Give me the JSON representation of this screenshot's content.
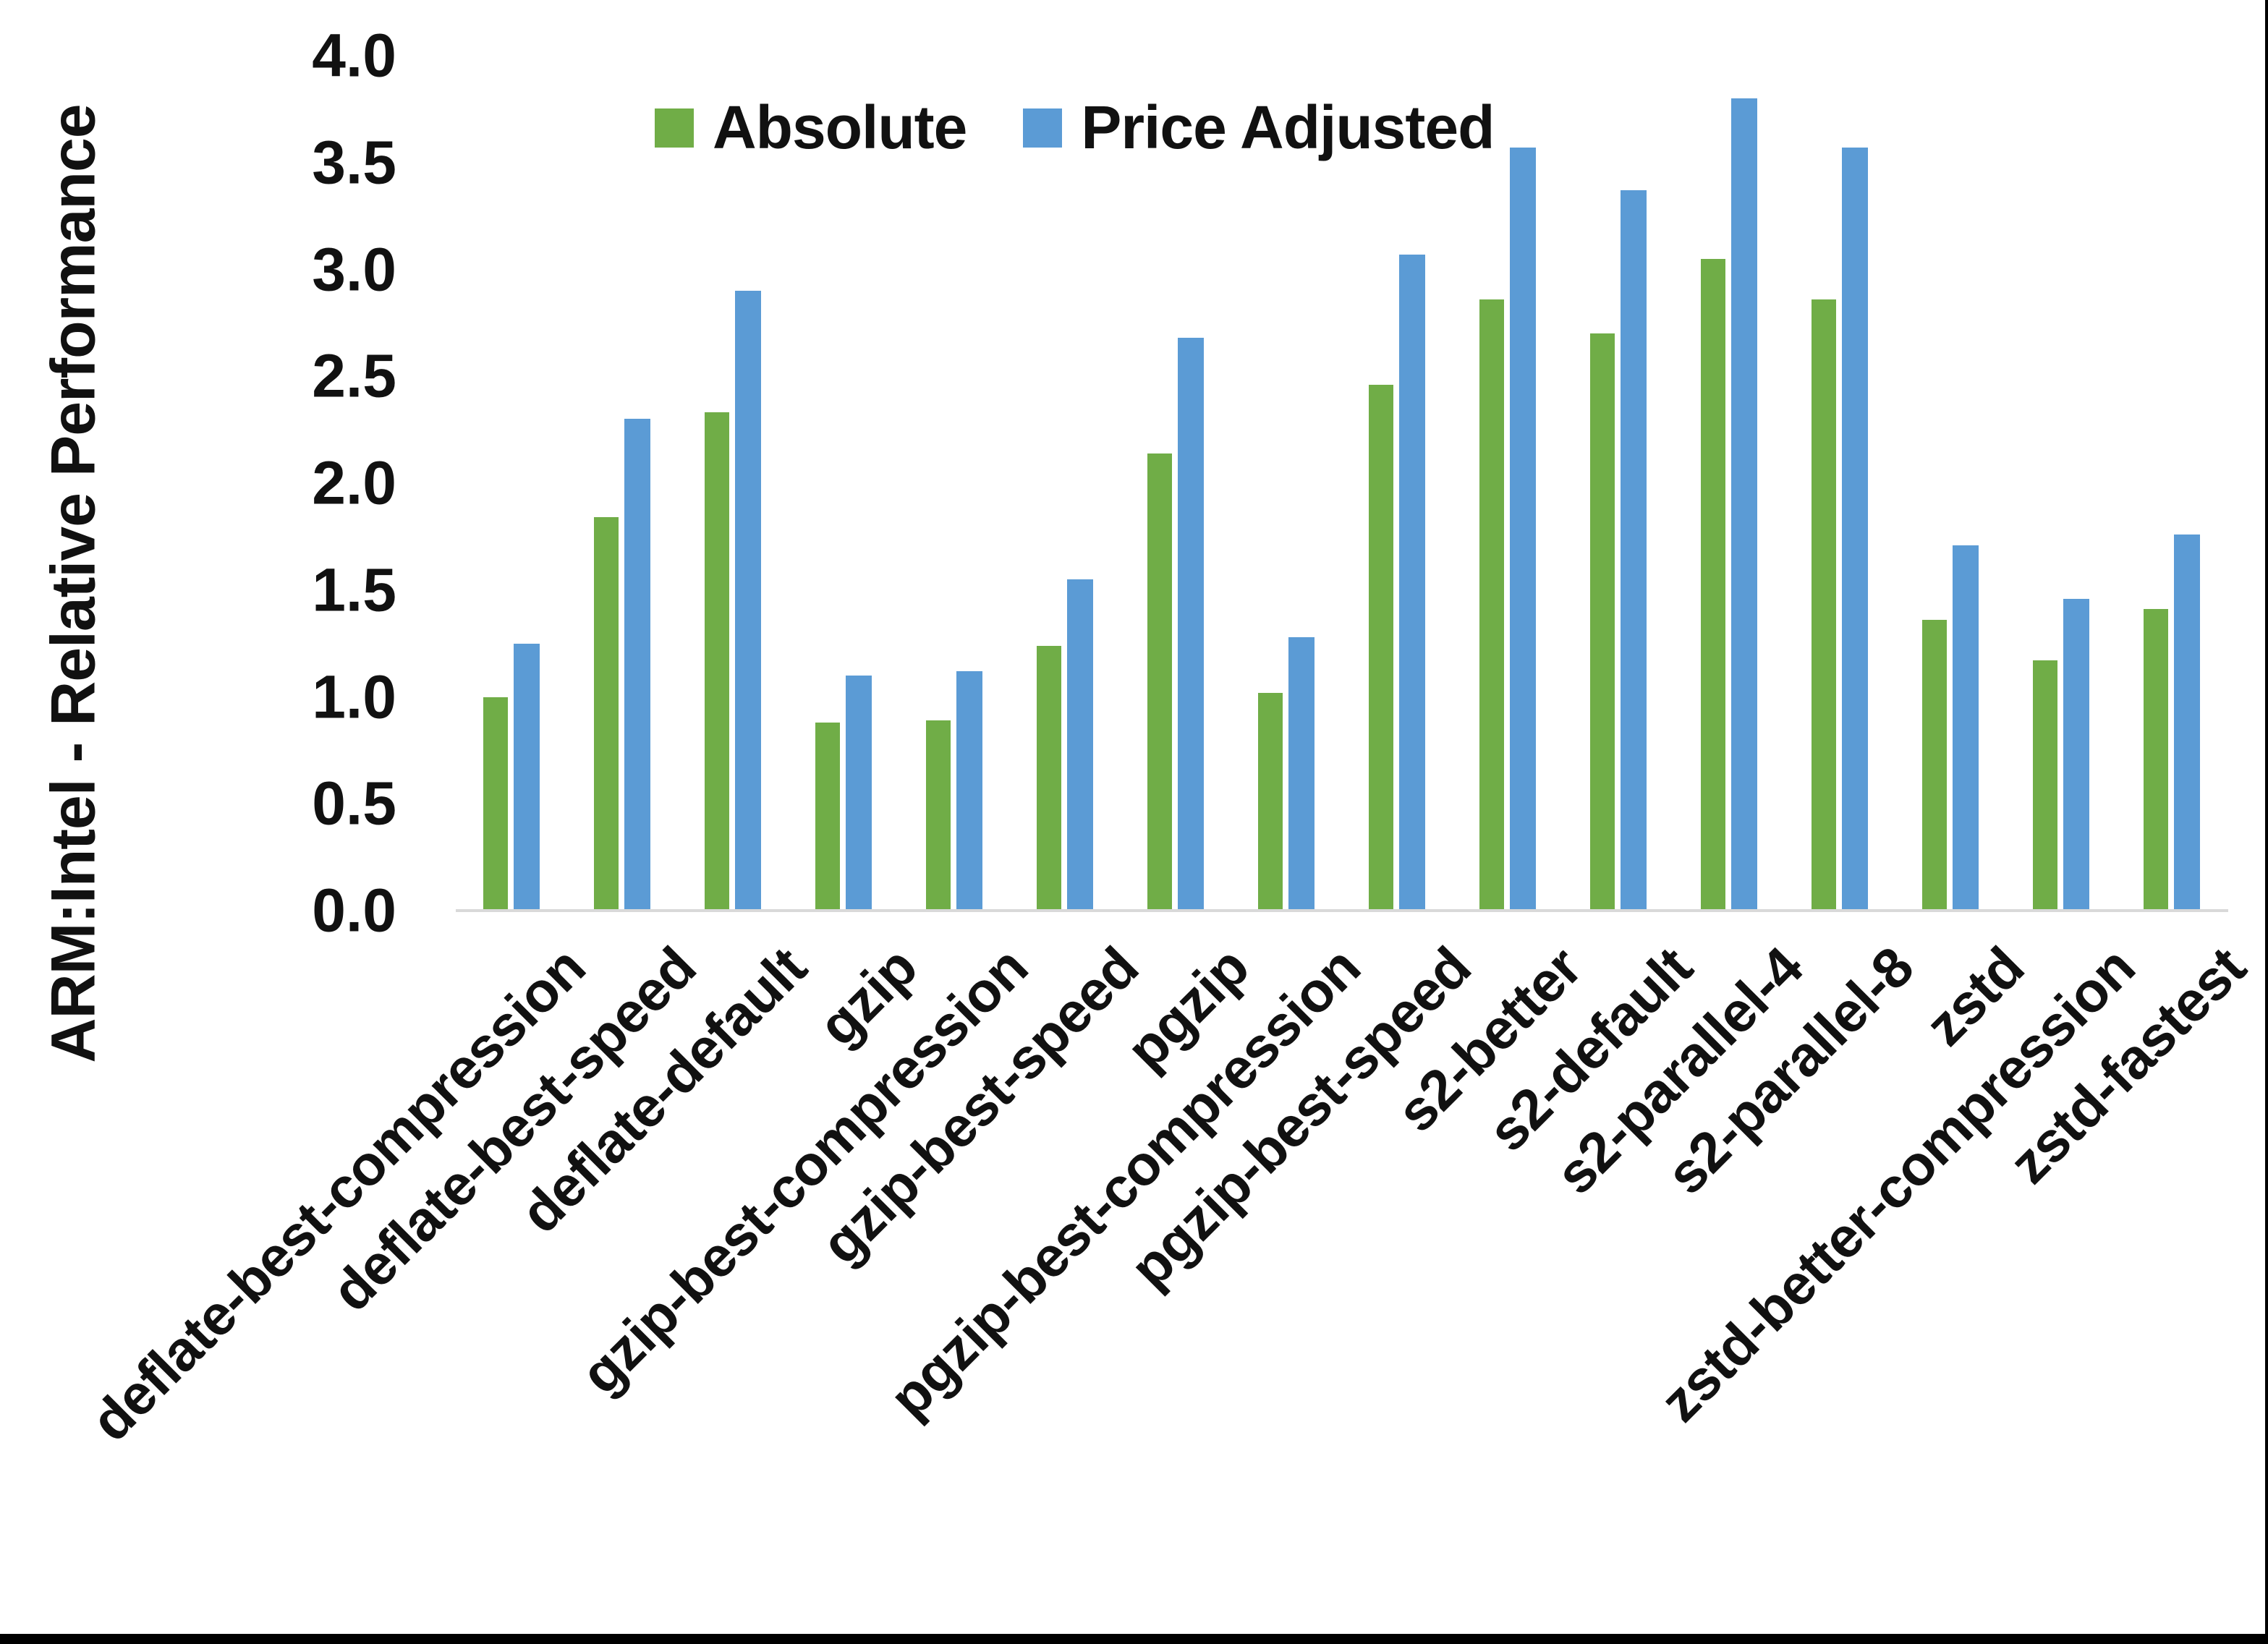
{
  "chart_data": {
    "type": "bar",
    "title": "",
    "ylabel": "ARM:Intel - Relative Performance",
    "xlabel": "",
    "ylim": [
      0.0,
      4.0
    ],
    "ytick_step": 0.5,
    "ytick_labels": [
      "0.0",
      "0.5",
      "1.0",
      "1.5",
      "2.0",
      "2.5",
      "3.0",
      "3.5",
      "4.0"
    ],
    "grid": false,
    "legend_position": "top-center",
    "categories": [
      "deflate-best-compression",
      "deflate-best-speed",
      "deflate-default",
      "gzip",
      "gzip-best-compression",
      "gzip-best-speed",
      "pgzip",
      "pgzip-best-compression",
      "pgzip-best-speed",
      "s2-better",
      "s2-default",
      "s2-parallel-4",
      "s2-parallel-8",
      "zstd",
      "zstd-better-compression",
      "zstd-fastest"
    ],
    "series": [
      {
        "name": "Absolute",
        "color": "#70AD47",
        "values": [
          1.0,
          1.84,
          2.33,
          0.88,
          0.89,
          1.24,
          2.14,
          1.02,
          2.46,
          2.86,
          2.7,
          3.05,
          2.86,
          1.36,
          1.17,
          1.41
        ]
      },
      {
        "name": "Price Adjusted",
        "color": "#5B9BD5",
        "values": [
          1.25,
          2.3,
          2.9,
          1.1,
          1.12,
          1.55,
          2.68,
          1.28,
          3.07,
          3.57,
          3.37,
          3.8,
          3.57,
          1.71,
          1.46,
          1.76
        ]
      }
    ],
    "axis_line_color": "#d9d9d9"
  }
}
